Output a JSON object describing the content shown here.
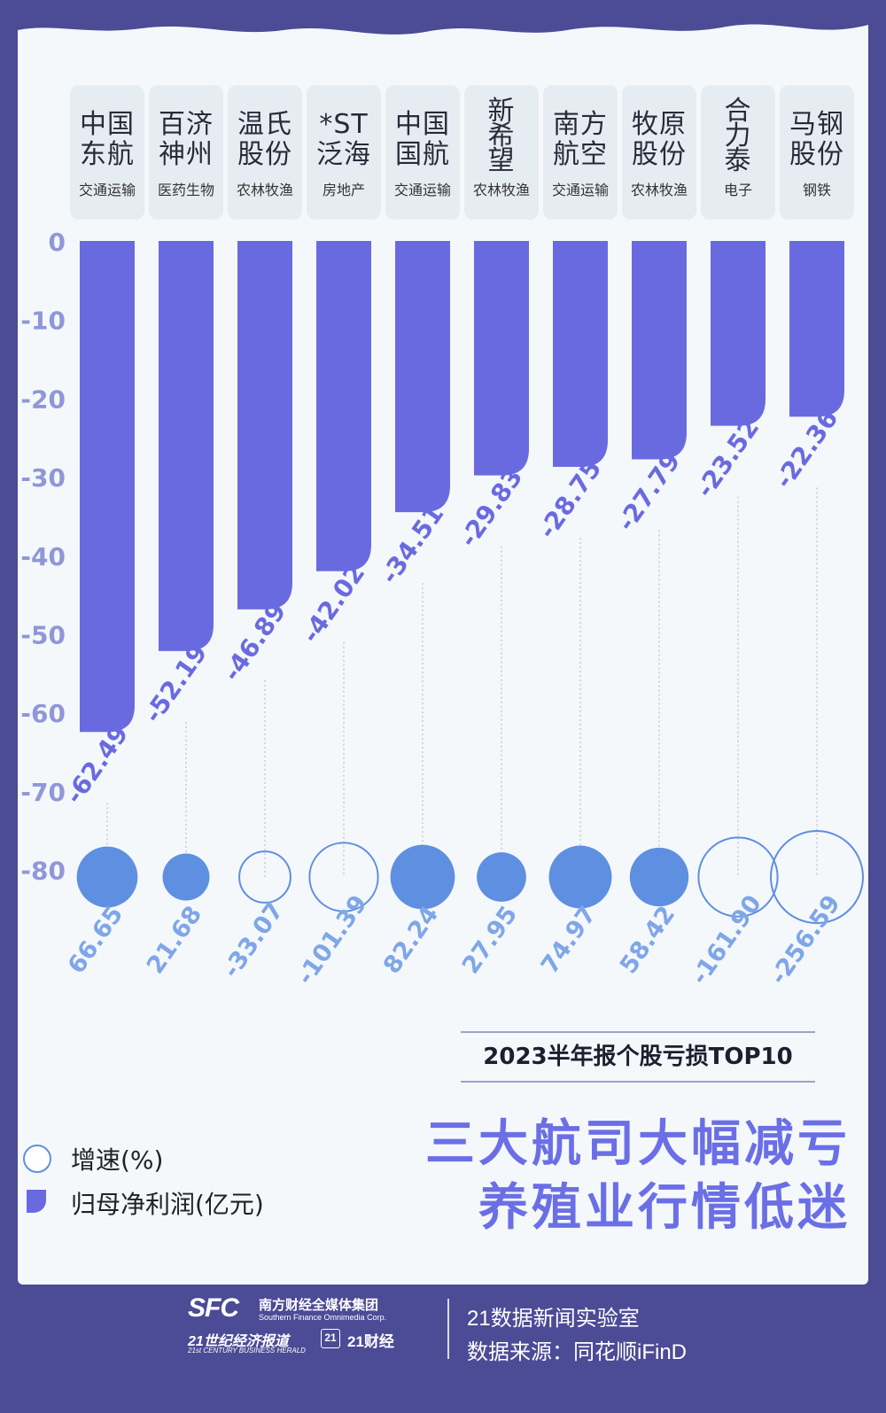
{
  "companies": [
    {
      "name": "中国\n东航",
      "industry": "交通运输"
    },
    {
      "name": "百济\n神州",
      "industry": "医药生物"
    },
    {
      "name": "温氏\n股份",
      "industry": "农林牧渔"
    },
    {
      "name": "*ST\n泛海",
      "industry": "房地产"
    },
    {
      "name": "中国\n国航",
      "industry": "交通运输"
    },
    {
      "name": "新\n希\n望",
      "industry": "农林牧渔"
    },
    {
      "name": "南方\n航空",
      "industry": "交通运输"
    },
    {
      "name": "牧原\n股份",
      "industry": "农林牧渔"
    },
    {
      "name": "合\n力\n泰",
      "industry": "电子"
    },
    {
      "name": "马钢\n股份",
      "industry": "钢铁"
    }
  ],
  "chart_data": {
    "type": "bar",
    "categories": [
      "中国东航",
      "百济神州",
      "温氏股份",
      "*ST泛海",
      "中国国航",
      "新希望",
      "南方航空",
      "牧原股份",
      "合力泰",
      "马钢股份"
    ],
    "series": [
      {
        "name": "归母净利润(亿元)",
        "values": [
          -62.49,
          -52.19,
          -46.89,
          -42.02,
          -34.51,
          -29.83,
          -28.75,
          -27.79,
          -23.52,
          -22.36
        ]
      },
      {
        "name": "增速(%)",
        "values": [
          66.65,
          21.68,
          -33.07,
          -101.39,
          82.24,
          27.95,
          74.97,
          58.42,
          -161.9,
          -256.59
        ]
      }
    ],
    "value_labels": [
      "-62.49",
      "-52.19",
      "-46.89",
      "-42.02",
      "-34.51",
      "-29.83",
      "-28.75",
      "-27.79",
      "-23.52",
      "-22.36"
    ],
    "growth_labels": [
      "66.65",
      "21.68",
      "-33.07",
      "-101.39",
      "82.24",
      "27.95",
      "74.97",
      "58.42",
      "-161.90",
      "-256.59"
    ],
    "y_ticks": [
      "0",
      "-10",
      "-20",
      "-30",
      "-40",
      "-50",
      "-60",
      "-70",
      "-80"
    ],
    "ylim": [
      -80,
      0
    ],
    "bar_color": "#6a6ae0",
    "circle_fill": "#5f8fe0",
    "circle_stroke": "#5f8fe0",
    "tick_color": "#8f97d8"
  },
  "legend": {
    "growth_label": "增速(%)",
    "profit_label": "归母净利润(亿元)"
  },
  "subtitle": "2023半年报个股亏损TOP10",
  "headline": {
    "line1": "三大航司大幅减亏",
    "line2": "养殖业行情低迷"
  },
  "footer": {
    "logo_main": "SFC",
    "group_name": "南方财经全媒体集团",
    "group_name_en": "Southern Finance Omnimedia Corp.",
    "paper_name": "21世纪经济报道",
    "paper_name_en": "21st CENTURY BUSINESS HERALD",
    "brand_badge": "21",
    "brand_name": "21财经",
    "lab": "21数据新闻实验室",
    "source": "数据来源：同花顺iFinD"
  }
}
